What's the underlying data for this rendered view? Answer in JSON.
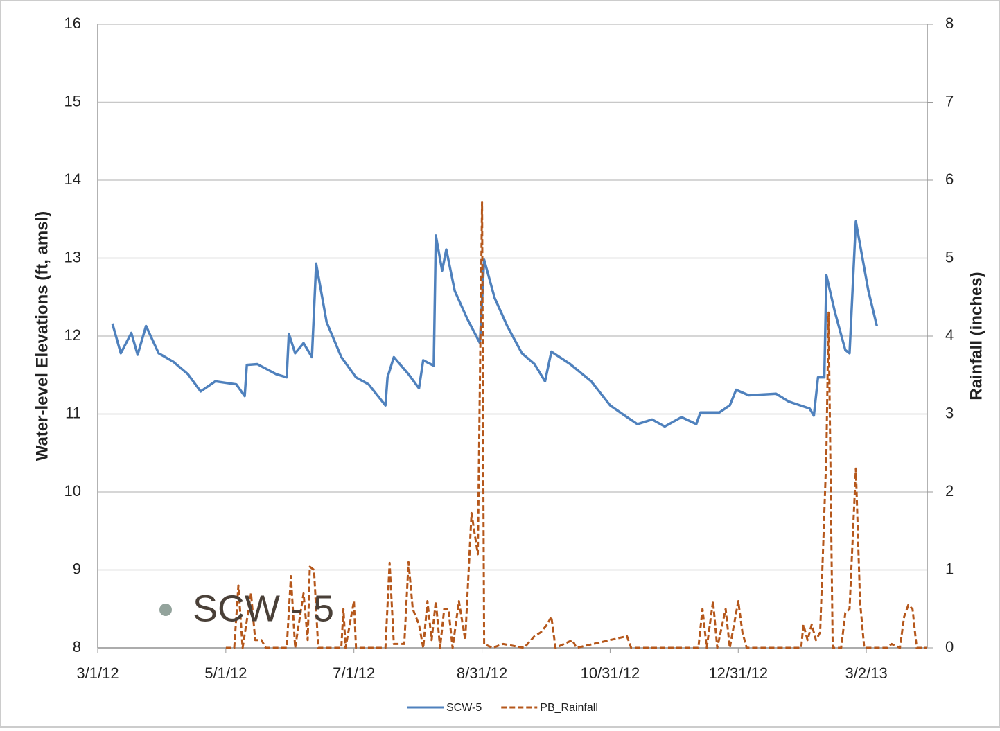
{
  "chart_data": {
    "type": "line",
    "y_label": "Water-level Elevations (ft, amsl)",
    "y2_label": "Rainfall (inches)",
    "annotation": "SCW - 5",
    "xlim": [
      "2012-03-01",
      "2013-03-31"
    ],
    "xticks": [
      {
        "value": "2012-03-01",
        "label": "3/1/12"
      },
      {
        "value": "2012-05-01",
        "label": "5/1/12"
      },
      {
        "value": "2012-07-01",
        "label": "7/1/12"
      },
      {
        "value": "2012-08-31",
        "label": "8/31/12"
      },
      {
        "value": "2012-10-31",
        "label": "10/31/12"
      },
      {
        "value": "2012-12-31",
        "label": "12/31/12"
      },
      {
        "value": "2013-03-02",
        "label": "3/2/13"
      }
    ],
    "ylim": [
      8,
      16
    ],
    "yticks": [
      8,
      9,
      10,
      11,
      12,
      13,
      14,
      15,
      16
    ],
    "y2lim": [
      0,
      8
    ],
    "y2ticks": [
      0,
      1,
      2,
      3,
      4,
      5,
      6,
      7,
      8
    ],
    "grid": true,
    "legend": "bottom",
    "series": [
      {
        "name": "SCW-5",
        "color": "#4f81bd",
        "dash": false,
        "x": [
          "2012-03-08",
          "2012-03-12",
          "2012-03-17",
          "2012-03-20",
          "2012-03-24",
          "2012-03-30",
          "2012-04-06",
          "2012-04-13",
          "2012-04-19",
          "2012-04-26",
          "2012-05-06",
          "2012-05-10",
          "2012-05-11",
          "2012-05-16",
          "2012-05-25",
          "2012-05-30",
          "2012-05-31",
          "2012-06-03",
          "2012-06-07",
          "2012-06-11",
          "2012-06-13",
          "2012-06-18",
          "2012-06-25",
          "2012-07-02",
          "2012-07-08",
          "2012-07-16",
          "2012-07-17",
          "2012-07-20",
          "2012-07-27",
          "2012-08-01",
          "2012-08-03",
          "2012-08-08",
          "2012-08-09",
          "2012-08-12",
          "2012-08-14",
          "2012-08-18",
          "2012-08-24",
          "2012-08-30",
          "2012-09-01",
          "2012-09-06",
          "2012-09-12",
          "2012-09-19",
          "2012-09-25",
          "2012-09-30",
          "2012-10-03",
          "2012-10-12",
          "2012-10-22",
          "2012-10-31",
          "2012-11-07",
          "2012-11-13",
          "2012-11-20",
          "2012-11-26",
          "2012-12-04",
          "2012-12-11",
          "2012-12-13",
          "2012-12-22",
          "2012-12-27",
          "2012-12-30",
          "2013-01-05",
          "2013-01-18",
          "2013-01-24",
          "2013-02-03",
          "2013-02-05",
          "2013-02-07",
          "2013-02-10",
          "2013-02-11",
          "2013-02-15",
          "2013-02-20",
          "2013-02-22",
          "2013-02-25",
          "2013-03-03",
          "2013-03-07"
        ],
        "values": [
          12.16,
          11.78,
          12.04,
          11.76,
          12.13,
          11.78,
          11.67,
          11.51,
          11.29,
          11.42,
          11.38,
          11.23,
          11.63,
          11.64,
          11.51,
          11.47,
          12.03,
          11.78,
          11.91,
          11.73,
          12.93,
          12.18,
          11.73,
          11.47,
          11.38,
          11.11,
          11.47,
          11.73,
          11.51,
          11.33,
          11.69,
          11.62,
          13.29,
          12.84,
          13.11,
          12.58,
          12.22,
          11.91,
          12.98,
          12.49,
          12.13,
          11.78,
          11.64,
          11.42,
          11.8,
          11.64,
          11.42,
          11.11,
          10.98,
          10.87,
          10.93,
          10.84,
          10.96,
          10.87,
          11.02,
          11.02,
          11.11,
          11.31,
          11.24,
          11.26,
          11.16,
          11.07,
          10.98,
          11.47,
          11.47,
          12.78,
          12.31,
          11.82,
          11.78,
          13.47,
          12.58,
          12.13
        ]
      },
      {
        "name": "PB_Rainfall",
        "color": "#b5571b",
        "dash": true,
        "axis": "y2",
        "x": [
          "2012-05-01",
          "2012-05-05",
          "2012-05-07",
          "2012-05-09",
          "2012-05-13",
          "2012-05-15",
          "2012-05-18",
          "2012-05-20",
          "2012-05-30",
          "2012-06-01",
          "2012-06-03",
          "2012-06-07",
          "2012-06-09",
          "2012-06-10",
          "2012-06-12",
          "2012-06-14",
          "2012-06-25",
          "2012-06-26",
          "2012-06-27",
          "2012-07-01",
          "2012-07-02",
          "2012-07-16",
          "2012-07-18",
          "2012-07-20",
          "2012-07-25",
          "2012-07-27",
          "2012-07-29",
          "2012-08-01",
          "2012-08-03",
          "2012-08-05",
          "2012-08-07",
          "2012-08-09",
          "2012-08-11",
          "2012-08-13",
          "2012-08-15",
          "2012-08-17",
          "2012-08-20",
          "2012-08-23",
          "2012-08-26",
          "2012-08-29",
          "2012-08-31",
          "2012-09-01",
          "2012-09-05",
          "2012-09-10",
          "2012-09-20",
          "2012-09-25",
          "2012-09-28",
          "2012-10-01",
          "2012-10-03",
          "2012-10-05",
          "2012-10-13",
          "2012-10-15",
          "2012-11-08",
          "2012-11-10",
          "2012-12-12",
          "2012-12-14",
          "2012-12-16",
          "2012-12-19",
          "2012-12-21",
          "2012-12-25",
          "2012-12-27",
          "2012-12-31",
          "2013-01-02",
          "2013-01-04",
          "2013-01-30",
          "2013-01-31",
          "2013-02-02",
          "2013-02-04",
          "2013-02-06",
          "2013-02-08",
          "2013-02-11",
          "2013-02-12",
          "2013-02-14",
          "2013-02-18",
          "2013-02-20",
          "2013-02-22",
          "2013-02-25",
          "2013-02-27",
          "2013-03-01",
          "2013-03-12",
          "2013-03-14",
          "2013-03-18",
          "2013-03-20",
          "2013-03-22",
          "2013-03-24",
          "2013-03-26",
          "2013-03-31"
        ],
        "values": [
          0,
          0,
          0.8,
          0,
          0.7,
          0.1,
          0.1,
          0,
          0,
          0.92,
          0,
          0.7,
          0.1,
          1.04,
          1.0,
          0,
          0,
          0.5,
          0,
          0.6,
          0,
          0,
          1.09,
          0.05,
          0.05,
          1.1,
          0.5,
          0.3,
          0,
          0.6,
          0.1,
          0.6,
          0,
          0.5,
          0.5,
          0,
          0.6,
          0.1,
          1.73,
          1.2,
          5.72,
          0.05,
          0,
          0.05,
          0,
          0.15,
          0.2,
          0.3,
          0.4,
          0,
          0.1,
          0,
          0.15,
          0,
          0,
          0.5,
          0,
          0.6,
          0,
          0.5,
          0,
          0.6,
          0.2,
          0,
          0,
          0.3,
          0.1,
          0.3,
          0.1,
          0.2,
          2.5,
          4.3,
          0,
          0,
          0.45,
          0.5,
          2.3,
          0.6,
          0,
          0,
          0.05,
          0,
          0.4,
          0.55,
          0.5,
          0,
          0
        ]
      }
    ]
  }
}
